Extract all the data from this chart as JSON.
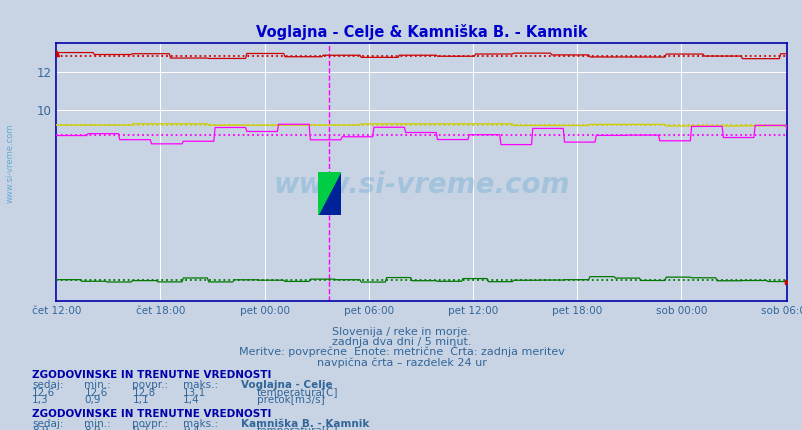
{
  "title": "Voglajna - Celje & Kamniška B. - Kamnik",
  "title_color": "#0000cc",
  "bg_color": "#c8d4e4",
  "plot_bg_color": "#c8d4e4",
  "grid_color": "#ffffff",
  "border_color": "#0000aa",
  "x_tick_labels": [
    "čet 12:00",
    "čet 18:00",
    "pet 00:00",
    "pet 06:00",
    "pet 12:00",
    "pet 18:00",
    "sob 00:00",
    "sob 06:00"
  ],
  "n_points": 576,
  "ylim": [
    0,
    13.5
  ],
  "ytick_pos": [
    10,
    12
  ],
  "voglajna_temp_mean": 12.8,
  "voglajna_temp_min": 12.6,
  "voglajna_temp_max": 13.1,
  "voglajna_flow_mean": 1.1,
  "voglajna_flow_min": 0.9,
  "voglajna_flow_max": 1.4,
  "kamnik_temp_mean": 9.2,
  "kamnik_temp_min": 8.9,
  "kamnik_temp_max": 9.4,
  "kamnik_flow_mean": 8.7,
  "kamnik_flow_min": 8.0,
  "kamnik_flow_max": 9.3,
  "voglajna_temp_color": "#cc0000",
  "voglajna_flow_color": "#007700",
  "kamnik_temp_color": "#cccc00",
  "kamnik_flow_color": "#ff00ff",
  "vline_color": "#ff00ff",
  "watermark_color": "#4499cc",
  "watermark_alpha": 0.28,
  "text_color": "#336699",
  "header_color": "#0000aa",
  "subtitle1": "Slovenija / reke in morje.",
  "subtitle2": "zadnja dva dni / 5 minut.",
  "subtitle3": "Meritve: povprečne  Enote: metrične  Črta: zadnja meritev",
  "subtitle4": "navpična črta – razdelek 24 ur",
  "figwidth": 8.03,
  "figheight": 4.3
}
